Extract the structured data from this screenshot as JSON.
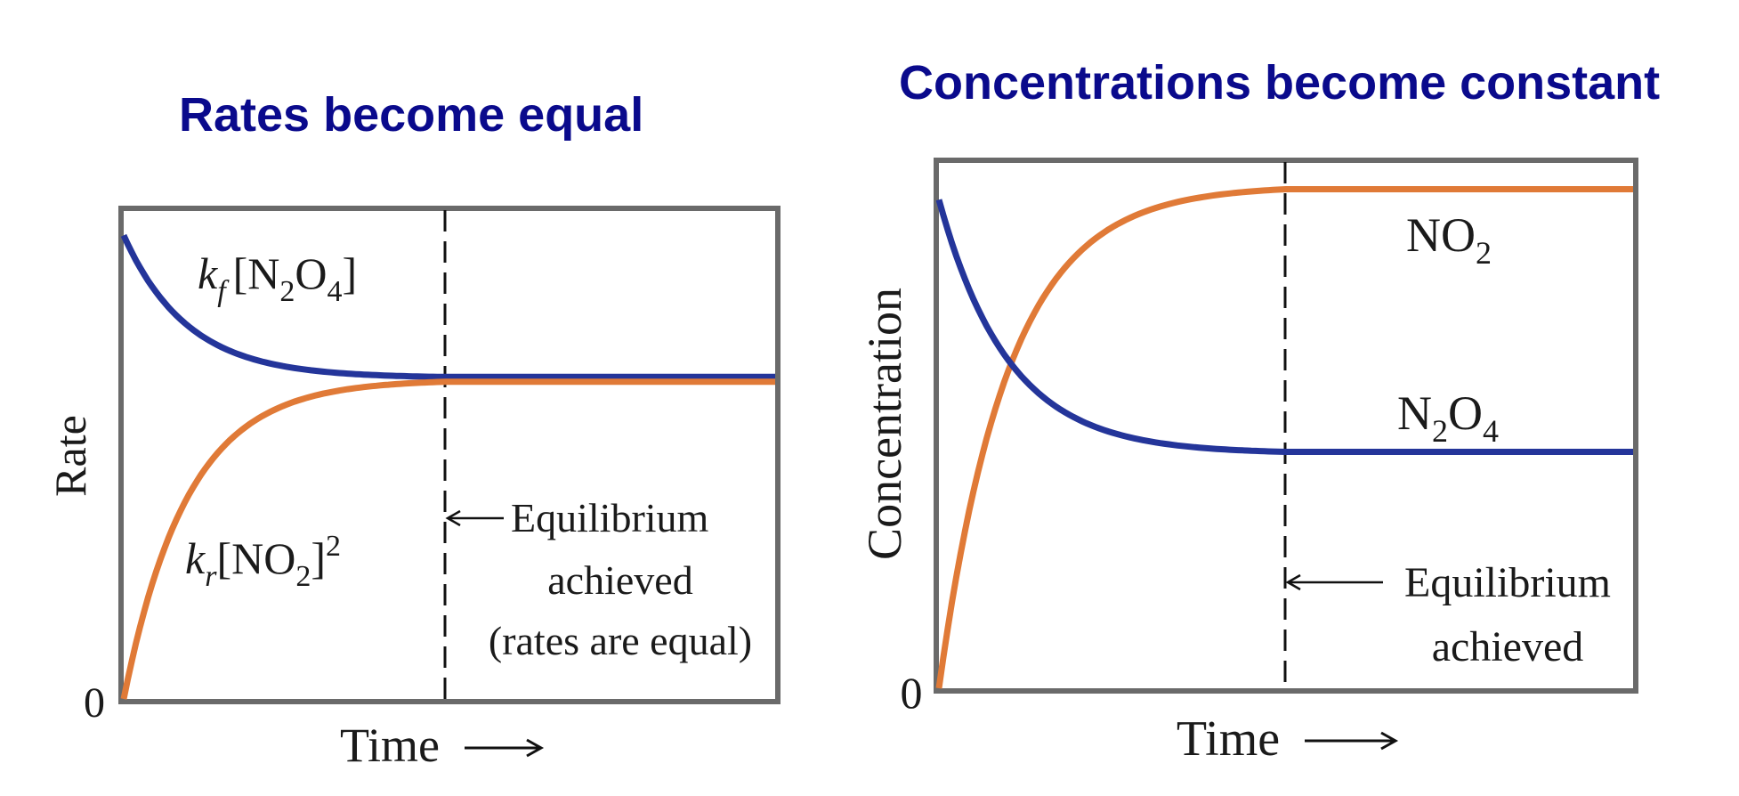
{
  "colors": {
    "title": "#0a0a8c",
    "reactant_curve": "#24359a",
    "product_curve": "#e07a37",
    "frame": "#6a6a6a"
  },
  "chart_data": [
    {
      "type": "line",
      "title": "Rates become equal",
      "ylabel": "Rate",
      "xlabel": "Time",
      "x_arrow": "⟶",
      "y_zero_label": "0",
      "equilibrium_x": 0.49,
      "x_range": [
        0,
        1
      ],
      "y_range": [
        0,
        1
      ],
      "equilibrium_labels": [
        "Equilibrium",
        "achieved",
        "(rates are equal)"
      ],
      "series": [
        {
          "name": "kf[N2O4]",
          "label": {
            "k": "k",
            "sub": "f",
            "text": "[N",
            "sub2": "2",
            "text2": "O",
            "sub3": "4",
            "text3": "]"
          },
          "color": "#24359a",
          "start": 0.95,
          "end": 0.66
        },
        {
          "name": "kr[NO2]^2",
          "label": {
            "k": "k",
            "sub": "r",
            "text": "[NO",
            "sub2": "2",
            "text2": "]",
            "sup": "2"
          },
          "color": "#e07a37",
          "start": 0.0,
          "end": 0.65
        }
      ],
      "grid": false
    },
    {
      "type": "line",
      "title": "Concentrations become constant",
      "ylabel": "Concentration",
      "xlabel": "Time",
      "x_arrow": "⟶",
      "y_zero_label": "0",
      "equilibrium_x": 0.5,
      "x_range": [
        0,
        1
      ],
      "y_range": [
        0,
        1
      ],
      "equilibrium_labels": [
        "Equilibrium",
        "achieved"
      ],
      "series": [
        {
          "name": "NO2",
          "label": {
            "text": "NO",
            "sub": "2"
          },
          "color": "#e07a37",
          "start": 0.0,
          "end": 0.95
        },
        {
          "name": "N2O4",
          "label": {
            "text": "N",
            "sub": "2",
            "text2": "O",
            "sub2": "4"
          },
          "color": "#24359a",
          "start": 0.93,
          "end": 0.45
        }
      ],
      "grid": false
    }
  ]
}
